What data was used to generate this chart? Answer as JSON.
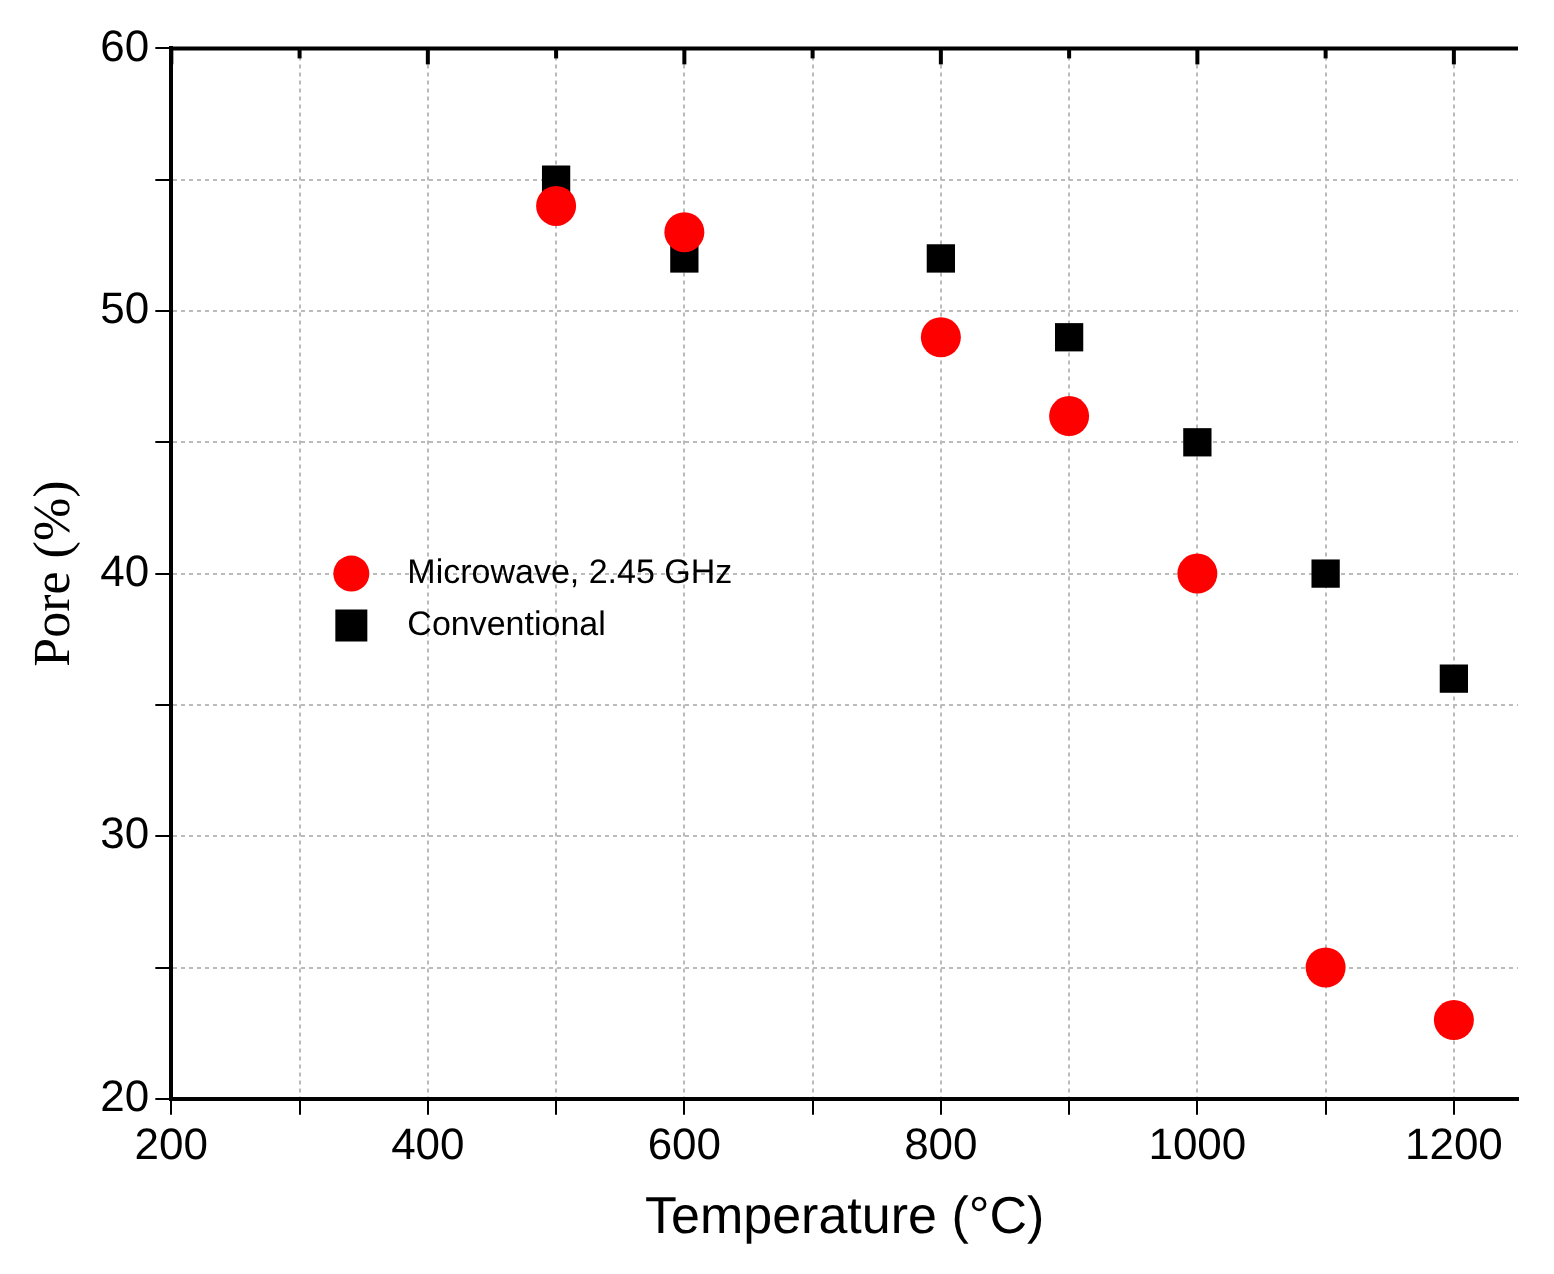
{
  "chart_data": {
    "type": "scatter",
    "xlabel": "Temperature (°C)",
    "ylabel": "Pore (%)",
    "xlim": [
      200,
      1250
    ],
    "xticks": [
      200,
      {
        "value": 300,
        "label": null
      },
      400,
      {
        "value": 500,
        "label": null
      },
      600,
      {
        "value": 700,
        "label": null
      },
      800,
      {
        "value": 900,
        "label": null
      },
      1000,
      {
        "value": 1100,
        "label": null
      },
      1200
    ],
    "ylim": [
      20,
      60
    ],
    "yticks": [
      20,
      {
        "value": 25,
        "label": null
      },
      30,
      {
        "value": 35,
        "label": null
      },
      40,
      {
        "value": 45,
        "label": null
      },
      50,
      {
        "value": 55,
        "label": null
      },
      60
    ],
    "grid": true,
    "legend": "left",
    "series": [
      {
        "name": "Microwave, 2.45 GHz",
        "color": "#ff0000",
        "marker": "circle",
        "x": [
          500,
          600,
          800,
          900,
          1000,
          1100,
          1200
        ],
        "values": [
          54,
          53,
          49,
          46,
          40,
          25,
          23
        ]
      },
      {
        "name": "Conventional",
        "color": "#000000",
        "marker": "square",
        "x": [
          500,
          600,
          800,
          900,
          1000,
          1100,
          1200
        ],
        "values": [
          55,
          52,
          52,
          49,
          45,
          40,
          36
        ]
      }
    ]
  }
}
